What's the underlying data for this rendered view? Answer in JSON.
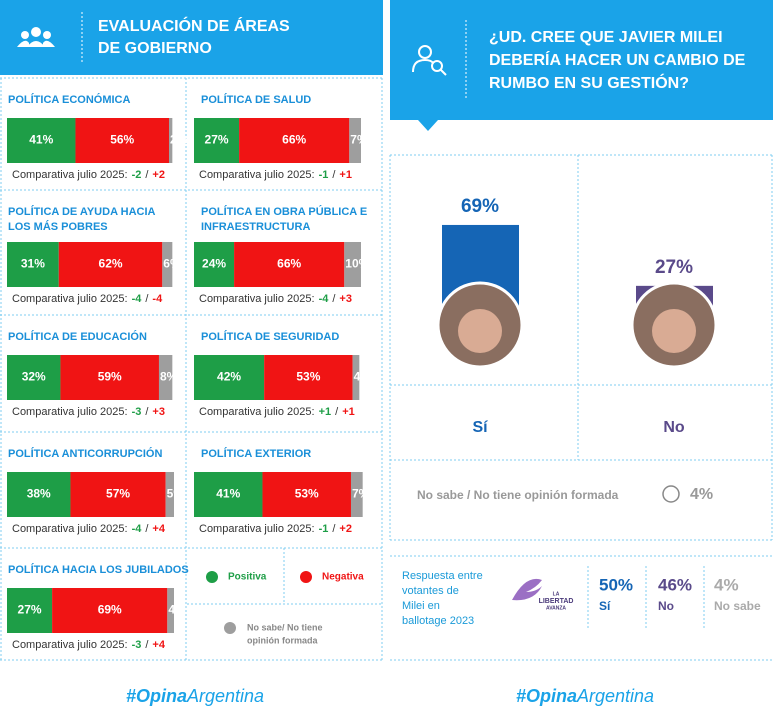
{
  "left": {
    "title_lines": [
      "EVALUACIÓN DE ÁREAS",
      "DE GOBIERNO"
    ],
    "comparison_prefix": "Comparativa julio 2025:",
    "comparison_separator": "/",
    "areas": [
      {
        "name_lines": [
          "POLÍTICA ECONÓMICA"
        ],
        "values": [
          41,
          56,
          2
        ],
        "value_labels": [
          "41%",
          "56%",
          "2%"
        ],
        "comparison": [
          -2,
          2
        ],
        "comparison_labels": [
          "-2",
          "+2"
        ]
      },
      {
        "name_lines": [
          "POLÍTICA DE SALUD"
        ],
        "values": [
          27,
          66,
          7
        ],
        "value_labels": [
          "27%",
          "66%",
          "7%"
        ],
        "comparison": [
          -1,
          1
        ],
        "comparison_labels": [
          "-1",
          "+1"
        ]
      },
      {
        "name_lines": [
          "POLÍTICA DE AYUDA HACIA",
          "LOS MÁS POBRES"
        ],
        "values": [
          31,
          62,
          6
        ],
        "value_labels": [
          "31%",
          "62%",
          "6%"
        ],
        "comparison": [
          -4,
          -4
        ],
        "comparison_labels": [
          "-4",
          "-4"
        ]
      },
      {
        "name_lines": [
          "POLÍTICA EN OBRA PÚBLICA E",
          "INFRAESTRUCTURA"
        ],
        "values": [
          24,
          66,
          10
        ],
        "value_labels": [
          "24%",
          "66%",
          "10%"
        ],
        "comparison": [
          -4,
          3
        ],
        "comparison_labels": [
          "-4",
          "+3"
        ]
      },
      {
        "name_lines": [
          "POLÍTICA DE EDUCACIÓN"
        ],
        "values": [
          32,
          59,
          8
        ],
        "value_labels": [
          "32%",
          "59%",
          "8%"
        ],
        "comparison": [
          -3,
          3
        ],
        "comparison_labels": [
          "-3",
          "+3"
        ]
      },
      {
        "name_lines": [
          "POLÍTICA DE SEGURIDAD"
        ],
        "values": [
          42,
          53,
          4
        ],
        "value_labels": [
          "42%",
          "53%",
          "4%"
        ],
        "comparison": [
          1,
          1
        ],
        "comparison_labels": [
          "+1",
          "+1"
        ]
      },
      {
        "name_lines": [
          "POLÍTICA ANTICORRUPCIÓN"
        ],
        "values": [
          38,
          57,
          5
        ],
        "value_labels": [
          "38%",
          "57%",
          "5%"
        ],
        "comparison": [
          -4,
          4
        ],
        "comparison_labels": [
          "-4",
          "+4"
        ]
      },
      {
        "name_lines": [
          "POLÍTICA EXTERIOR"
        ],
        "values": [
          41,
          53,
          7
        ],
        "value_labels": [
          "41%",
          "53%",
          "7%"
        ],
        "comparison": [
          -1,
          2
        ],
        "comparison_labels": [
          "-1",
          "+2"
        ]
      },
      {
        "name_lines": [
          "POLÍTICA HACIA LOS JUBILADOS"
        ],
        "values": [
          27,
          69,
          4
        ],
        "value_labels": [
          "27%",
          "69%",
          "4%"
        ],
        "comparison": [
          -3,
          4
        ],
        "comparison_labels": [
          "-3",
          "+4"
        ]
      }
    ],
    "legend": [
      {
        "label_lines": [
          "Positiva"
        ],
        "color": "#1e9e47"
      },
      {
        "label_lines": [
          "Negativa"
        ],
        "color": "#f01414"
      },
      {
        "label_lines": [
          "No sabe/ No tiene",
          "opinión formada"
        ],
        "color": "#9e9e9e"
      }
    ]
  },
  "right": {
    "question_lines": [
      "¿UD. CREE QUE JAVIER MILEI",
      "DEBERÍA HACER UN CAMBIO DE",
      "RUMBO EN SU GESTIÓN?"
    ],
    "answers": [
      {
        "label": "Sí",
        "value": 69,
        "value_label": "69%",
        "color": "#1565b5"
      },
      {
        "label": "No",
        "value": 27,
        "value_label": "27%",
        "color": "#5a4a8a"
      }
    ],
    "no_sabe": {
      "label": "No sabe / No tiene opinión formada",
      "value": 4,
      "value_label": "4%"
    },
    "ballotage": {
      "label_lines": [
        "Respuesta entre",
        "votantes de",
        "Milei en",
        "ballotage 2023"
      ],
      "logo_lines": [
        "LA",
        "LIBERTAD",
        "AVANZA"
      ],
      "results": [
        {
          "value": 50,
          "value_label": "50%",
          "label": "Sí",
          "color": "#1565b5"
        },
        {
          "value": 46,
          "value_label": "46%",
          "label": "No",
          "color": "#5a4a8a"
        },
        {
          "value": 4,
          "value_label": "4%",
          "label": "No sabe",
          "color": "#aaaaaa"
        }
      ]
    }
  },
  "brand": [
    "#",
    "Opina",
    "Argentina"
  ]
}
